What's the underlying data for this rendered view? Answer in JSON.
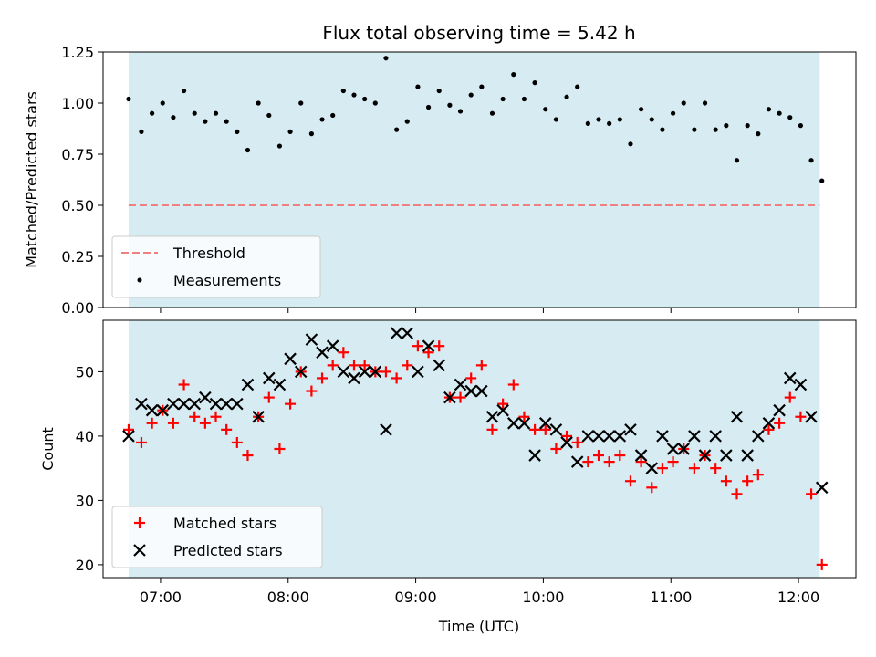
{
  "chart_data": [
    {
      "type": "scatter",
      "title": "Flux total observing time = 5.42 h",
      "ylabel": "Matched/Predicted stars",
      "xlabel": "",
      "xlim": [
        "06:33",
        "12:27"
      ],
      "ylim": [
        0,
        1.25
      ],
      "yticks": [
        "0.00",
        "0.25",
        "0.50",
        "0.75",
        "1.00",
        "1.25"
      ],
      "shaded_span": [
        "06:45",
        "12:10"
      ],
      "shade_color": "#add8e6",
      "threshold": {
        "name": "Threshold",
        "value": 0.5,
        "color": "#f08080"
      },
      "series": [
        {
          "name": "Measurements",
          "color": "#000000",
          "marker": "dot",
          "points": [
            [
              "06:45",
              1.02
            ],
            [
              "06:51",
              0.86
            ],
            [
              "06:56",
              0.95
            ],
            [
              "07:01",
              1.0
            ],
            [
              "07:06",
              0.93
            ],
            [
              "07:11",
              1.06
            ],
            [
              "07:16",
              0.95
            ],
            [
              "07:21",
              0.91
            ],
            [
              "07:26",
              0.95
            ],
            [
              "07:31",
              0.91
            ],
            [
              "07:36",
              0.86
            ],
            [
              "07:41",
              0.77
            ],
            [
              "07:46",
              1.0
            ],
            [
              "07:51",
              0.94
            ],
            [
              "07:56",
              0.79
            ],
            [
              "08:01",
              0.86
            ],
            [
              "08:06",
              1.0
            ],
            [
              "08:11",
              0.85
            ],
            [
              "08:16",
              0.92
            ],
            [
              "08:21",
              0.94
            ],
            [
              "08:26",
              1.06
            ],
            [
              "08:31",
              1.04
            ],
            [
              "08:36",
              1.02
            ],
            [
              "08:41",
              1.0
            ],
            [
              "08:46",
              1.22
            ],
            [
              "08:51",
              0.87
            ],
            [
              "08:56",
              0.91
            ],
            [
              "09:01",
              1.08
            ],
            [
              "09:06",
              0.98
            ],
            [
              "09:11",
              1.06
            ],
            [
              "09:16",
              0.99
            ],
            [
              "09:21",
              0.96
            ],
            [
              "09:26",
              1.04
            ],
            [
              "09:31",
              1.08
            ],
            [
              "09:36",
              0.95
            ],
            [
              "09:41",
              1.02
            ],
            [
              "09:46",
              1.14
            ],
            [
              "09:51",
              1.02
            ],
            [
              "09:56",
              1.1
            ],
            [
              "10:01",
              0.97
            ],
            [
              "10:06",
              0.92
            ],
            [
              "10:11",
              1.03
            ],
            [
              "10:16",
              1.08
            ],
            [
              "10:21",
              0.9
            ],
            [
              "10:26",
              0.92
            ],
            [
              "10:31",
              0.9
            ],
            [
              "10:36",
              0.92
            ],
            [
              "10:41",
              0.8
            ],
            [
              "10:46",
              0.97
            ],
            [
              "10:51",
              0.92
            ],
            [
              "10:56",
              0.87
            ],
            [
              "11:01",
              0.95
            ],
            [
              "11:06",
              1.0
            ],
            [
              "11:11",
              0.87
            ],
            [
              "11:16",
              1.0
            ],
            [
              "11:21",
              0.87
            ],
            [
              "11:26",
              0.89
            ],
            [
              "11:31",
              0.72
            ],
            [
              "11:36",
              0.89
            ],
            [
              "11:41",
              0.85
            ],
            [
              "11:46",
              0.97
            ],
            [
              "11:51",
              0.95
            ],
            [
              "11:56",
              0.93
            ],
            [
              "12:01",
              0.89
            ],
            [
              "12:06",
              0.72
            ],
            [
              "12:11",
              0.62
            ]
          ]
        }
      ],
      "legend": {
        "placement": "lower-left",
        "entries": [
          "Threshold",
          "Measurements"
        ]
      }
    },
    {
      "type": "scatter",
      "title": "",
      "xlabel": "Time (UTC)",
      "ylabel": "Count",
      "xlim": [
        "06:33",
        "12:27"
      ],
      "ylim": [
        18,
        58
      ],
      "yticks": [
        "20",
        "30",
        "40",
        "50"
      ],
      "xticks": [
        "07:00",
        "08:00",
        "09:00",
        "10:00",
        "11:00",
        "12:00"
      ],
      "shaded_span": [
        "06:45",
        "12:10"
      ],
      "shade_color": "#add8e6",
      "series": [
        {
          "name": "Matched stars",
          "color": "#ff0000",
          "marker": "plus",
          "points": [
            [
              "06:45",
              41
            ],
            [
              "06:51",
              39
            ],
            [
              "06:56",
              42
            ],
            [
              "07:01",
              44
            ],
            [
              "07:06",
              42
            ],
            [
              "07:11",
              48
            ],
            [
              "07:16",
              43
            ],
            [
              "07:21",
              42
            ],
            [
              "07:26",
              43
            ],
            [
              "07:31",
              41
            ],
            [
              "07:36",
              39
            ],
            [
              "07:41",
              37
            ],
            [
              "07:46",
              43
            ],
            [
              "07:51",
              46
            ],
            [
              "07:56",
              38
            ],
            [
              "08:01",
              45
            ],
            [
              "08:06",
              50
            ],
            [
              "08:11",
              47
            ],
            [
              "08:16",
              49
            ],
            [
              "08:21",
              51
            ],
            [
              "08:26",
              53
            ],
            [
              "08:31",
              51
            ],
            [
              "08:36",
              51
            ],
            [
              "08:41",
              50
            ],
            [
              "08:46",
              50
            ],
            [
              "08:51",
              49
            ],
            [
              "08:56",
              51
            ],
            [
              "09:01",
              54
            ],
            [
              "09:06",
              53
            ],
            [
              "09:11",
              54
            ],
            [
              "09:16",
              46
            ],
            [
              "09:21",
              46
            ],
            [
              "09:26",
              49
            ],
            [
              "09:31",
              51
            ],
            [
              "09:36",
              41
            ],
            [
              "09:41",
              45
            ],
            [
              "09:46",
              48
            ],
            [
              "09:51",
              43
            ],
            [
              "09:56",
              41
            ],
            [
              "10:01",
              41
            ],
            [
              "10:06",
              38
            ],
            [
              "10:11",
              40
            ],
            [
              "10:16",
              39
            ],
            [
              "10:21",
              36
            ],
            [
              "10:26",
              37
            ],
            [
              "10:31",
              36
            ],
            [
              "10:36",
              37
            ],
            [
              "10:41",
              33
            ],
            [
              "10:46",
              36
            ],
            [
              "10:51",
              32
            ],
            [
              "10:56",
              35
            ],
            [
              "11:01",
              36
            ],
            [
              "11:06",
              38
            ],
            [
              "11:11",
              35
            ],
            [
              "11:16",
              37
            ],
            [
              "11:21",
              35
            ],
            [
              "11:26",
              33
            ],
            [
              "11:31",
              31
            ],
            [
              "11:36",
              33
            ],
            [
              "11:41",
              34
            ],
            [
              "11:46",
              41
            ],
            [
              "11:51",
              42
            ],
            [
              "11:56",
              46
            ],
            [
              "12:01",
              43
            ],
            [
              "12:06",
              31
            ],
            [
              "12:11",
              20
            ]
          ]
        },
        {
          "name": "Predicted stars",
          "color": "#000000",
          "marker": "x",
          "points": [
            [
              "06:45",
              40
            ],
            [
              "06:51",
              45
            ],
            [
              "06:56",
              44
            ],
            [
              "07:01",
              44
            ],
            [
              "07:06",
              45
            ],
            [
              "07:11",
              45
            ],
            [
              "07:16",
              45
            ],
            [
              "07:21",
              46
            ],
            [
              "07:26",
              45
            ],
            [
              "07:31",
              45
            ],
            [
              "07:36",
              45
            ],
            [
              "07:41",
              48
            ],
            [
              "07:46",
              43
            ],
            [
              "07:51",
              49
            ],
            [
              "07:56",
              48
            ],
            [
              "08:01",
              52
            ],
            [
              "08:06",
              50
            ],
            [
              "08:11",
              55
            ],
            [
              "08:16",
              53
            ],
            [
              "08:21",
              54
            ],
            [
              "08:26",
              50
            ],
            [
              "08:31",
              49
            ],
            [
              "08:36",
              50
            ],
            [
              "08:41",
              50
            ],
            [
              "08:46",
              41
            ],
            [
              "08:51",
              56
            ],
            [
              "08:56",
              56
            ],
            [
              "09:01",
              50
            ],
            [
              "09:06",
              54
            ],
            [
              "09:11",
              51
            ],
            [
              "09:16",
              46
            ],
            [
              "09:21",
              48
            ],
            [
              "09:26",
              47
            ],
            [
              "09:31",
              47
            ],
            [
              "09:36",
              43
            ],
            [
              "09:41",
              44
            ],
            [
              "09:46",
              42
            ],
            [
              "09:51",
              42
            ],
            [
              "09:56",
              37
            ],
            [
              "10:01",
              42
            ],
            [
              "10:06",
              41
            ],
            [
              "10:11",
              39
            ],
            [
              "10:16",
              36
            ],
            [
              "10:21",
              40
            ],
            [
              "10:26",
              40
            ],
            [
              "10:31",
              40
            ],
            [
              "10:36",
              40
            ],
            [
              "10:41",
              41
            ],
            [
              "10:46",
              37
            ],
            [
              "10:51",
              35
            ],
            [
              "10:56",
              40
            ],
            [
              "11:01",
              38
            ],
            [
              "11:06",
              38
            ],
            [
              "11:11",
              40
            ],
            [
              "11:16",
              37
            ],
            [
              "11:21",
              40
            ],
            [
              "11:26",
              37
            ],
            [
              "11:31",
              43
            ],
            [
              "11:36",
              37
            ],
            [
              "11:41",
              40
            ],
            [
              "11:46",
              42
            ],
            [
              "11:51",
              44
            ],
            [
              "11:56",
              49
            ],
            [
              "12:01",
              48
            ],
            [
              "12:06",
              43
            ],
            [
              "12:11",
              32
            ]
          ]
        }
      ],
      "legend": {
        "placement": "lower-left",
        "entries": [
          "Matched stars",
          "Predicted stars"
        ]
      }
    }
  ]
}
